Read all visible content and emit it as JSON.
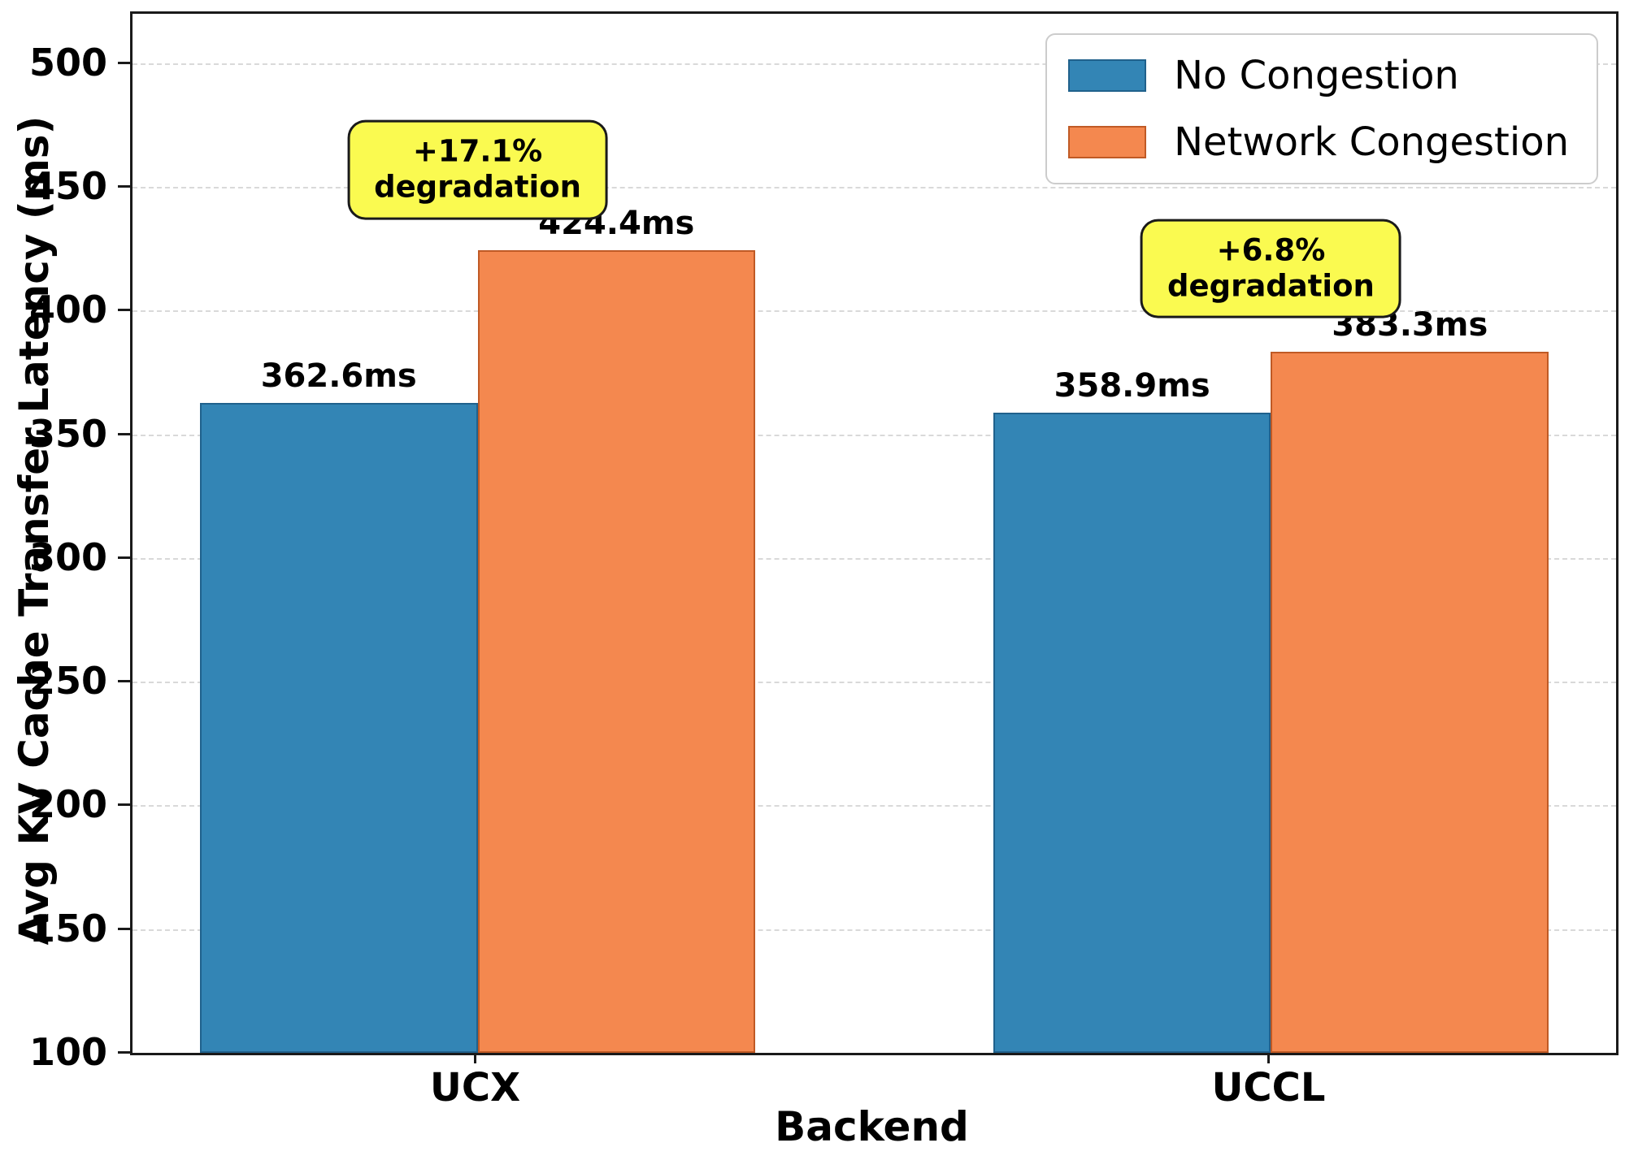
{
  "chart_data": {
    "type": "bar",
    "xlabel": "Backend",
    "ylabel": "Avg KV Cache Transfer Latency (ms)",
    "categories": [
      "UCX",
      "UCCL"
    ],
    "series": [
      {
        "name": "No Congestion",
        "color": "#3385b5",
        "edge_color": "#20618c",
        "values": [
          362.6,
          358.9
        ],
        "labels": [
          "362.6ms",
          "358.9ms"
        ]
      },
      {
        "name": "Network Congestion",
        "color": "#f4884f",
        "edge_color": "#c05a25",
        "values": [
          424.4,
          383.3
        ],
        "labels": [
          "424.4ms",
          "383.3ms"
        ]
      }
    ],
    "annotations": [
      {
        "line1": "+17.1%",
        "line2": "degradation",
        "group_index": 0,
        "y_value": 457,
        "bg": "#fafa50",
        "border": "#1a1a1a"
      },
      {
        "line1": "+6.8%",
        "line2": "degradation",
        "group_index": 1,
        "y_value": 417,
        "bg": "#fafa50",
        "border": "#1a1a1a"
      }
    ],
    "ylim": [
      100,
      520
    ],
    "yticks": [
      100,
      150,
      200,
      250,
      300,
      350,
      400,
      450,
      500
    ],
    "grid": "horizontal-dashed",
    "legend_position": "top-right",
    "colors": {
      "grid": "#d9d9d9",
      "spine": "#1a1a1a",
      "background": "#ffffff"
    }
  }
}
